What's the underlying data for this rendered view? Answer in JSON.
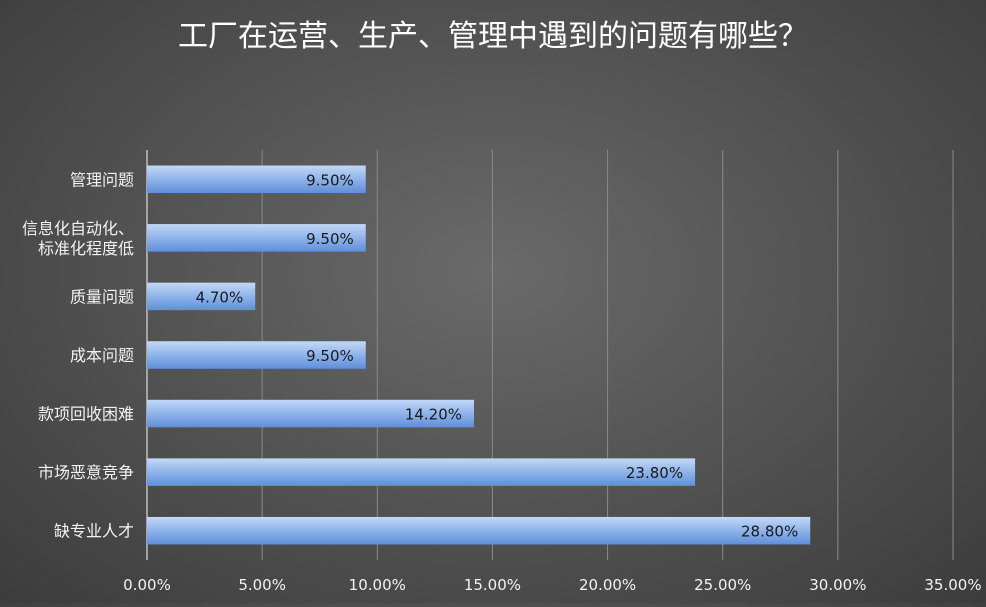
{
  "chart_data": {
    "type": "bar",
    "orientation": "horizontal",
    "title": "工厂在运营、生产、管理中遇到的问题有哪些？",
    "categories": [
      [
        "管理问题"
      ],
      [
        "信息化自动化、",
        "标准化程度低"
      ],
      [
        "质量问题"
      ],
      [
        "成本问题"
      ],
      [
        "款项回收困难"
      ],
      [
        "市场恶意竞争"
      ],
      [
        "缺专业人才"
      ]
    ],
    "values": [
      9.5,
      9.5,
      4.7,
      9.5,
      14.2,
      23.8,
      28.8
    ],
    "data_labels": [
      "9.50%",
      "9.50%",
      "4.70%",
      "9.50%",
      "14.20%",
      "23.80%",
      "28.80%"
    ],
    "x_ticks": [
      0,
      5,
      10,
      15,
      20,
      25,
      30,
      35
    ],
    "x_tick_labels": [
      "0.00%",
      "5.00%",
      "10.00%",
      "15.00%",
      "20.00%",
      "25.00%",
      "30.00%",
      "35.00%"
    ],
    "xlim": [
      0,
      35
    ],
    "grid": true,
    "legend": "none",
    "colors": {
      "bar_top": "#c3d8f7",
      "bar_mid": "#8fb3ea",
      "bar_bottom": "#5f8fd9",
      "grid": "#8a8a8a",
      "axis": "#bfbfbf",
      "title_text": "#ffffff",
      "label_text": "#f2f2f2",
      "value_text": "#1a1a1a"
    }
  }
}
